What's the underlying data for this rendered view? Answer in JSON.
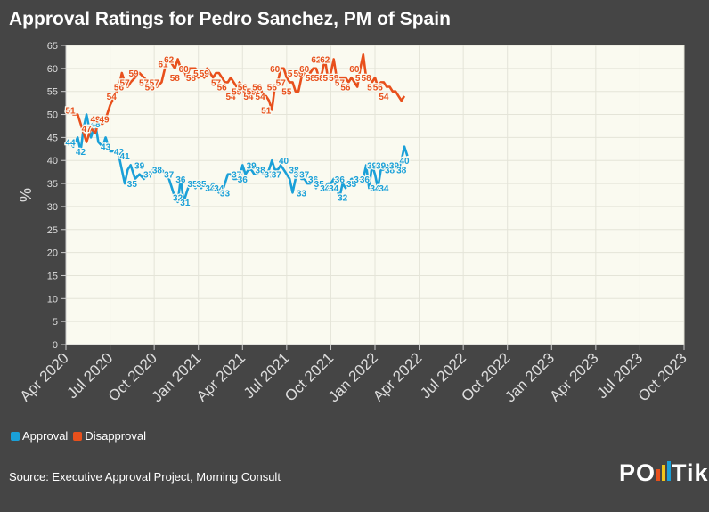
{
  "title": "Approval Ratings for Pedro Sanchez, PM of Spain",
  "legend": {
    "approval": "Approval",
    "disapproval": "Disapproval"
  },
  "source": "Source: Executive Approval Project, Morning Consult",
  "logo": {
    "prefix": "PO",
    "suffix": "Tik"
  },
  "colors": {
    "approval": "#1aa0d8",
    "disapproval": "#e8501c",
    "plot_bg": "#fafaf0",
    "page_bg": "#454545"
  },
  "chart_data": {
    "type": "line",
    "title": "Approval Ratings for Pedro Sanchez, PM of Spain",
    "ylabel": "%",
    "xlabel": "",
    "ylim": [
      0,
      65
    ],
    "yticks": [
      0,
      5,
      10,
      15,
      20,
      25,
      30,
      35,
      40,
      45,
      50,
      55,
      60,
      65
    ],
    "x_start": "Apr 2020",
    "x_end": "Oct 2023",
    "xticks": [
      "Apr 2020",
      "Jul 2020",
      "Oct 2020",
      "Jan 2021",
      "Apr 2021",
      "Jul 2021",
      "Oct 2021",
      "Jan 2022",
      "Apr 2022",
      "Jul 2022",
      "Oct 2022",
      "Jan 2023",
      "Apr 2023",
      "Jul 2023",
      "Oct 2023"
    ],
    "series": [
      {
        "name": "Approval",
        "points": [
          [
            0.3,
            44
          ],
          [
            0.5,
            43
          ],
          [
            0.8,
            45
          ],
          [
            1.0,
            42
          ],
          [
            1.2,
            47
          ],
          [
            1.4,
            50
          ],
          [
            1.7,
            45
          ],
          [
            2.0,
            48
          ],
          [
            2.2,
            44
          ],
          [
            2.5,
            43
          ],
          [
            2.7,
            45
          ],
          [
            3.0,
            42
          ],
          [
            3.3,
            42
          ],
          [
            3.6,
            41
          ],
          [
            3.8,
            38
          ],
          [
            4.0,
            35
          ],
          [
            4.2,
            38
          ],
          [
            4.4,
            39
          ],
          [
            4.7,
            36
          ],
          [
            5.0,
            37
          ],
          [
            5.3,
            36
          ],
          [
            5.6,
            37
          ],
          [
            5.9,
            38
          ],
          [
            6.2,
            38
          ],
          [
            6.5,
            38
          ],
          [
            6.8,
            37
          ],
          [
            7.0,
            36
          ],
          [
            7.2,
            34
          ],
          [
            7.4,
            32
          ],
          [
            7.6,
            31
          ],
          [
            7.8,
            36
          ],
          [
            8.0,
            31
          ],
          [
            8.2,
            33
          ],
          [
            8.4,
            35
          ],
          [
            8.6,
            35
          ],
          [
            8.8,
            34
          ],
          [
            9.0,
            35
          ],
          [
            9.2,
            34
          ],
          [
            9.4,
            35
          ],
          [
            9.6,
            34
          ],
          [
            9.8,
            34
          ],
          [
            10.0,
            35
          ],
          [
            10.2,
            34
          ],
          [
            10.4,
            33
          ],
          [
            10.6,
            33
          ],
          [
            10.8,
            35
          ],
          [
            11.0,
            37
          ],
          [
            11.2,
            37
          ],
          [
            11.4,
            36
          ],
          [
            11.6,
            36
          ],
          [
            11.8,
            36
          ],
          [
            12.0,
            39
          ],
          [
            12.2,
            37
          ],
          [
            12.4,
            38
          ],
          [
            12.6,
            38
          ],
          [
            12.8,
            37
          ],
          [
            13.0,
            37
          ],
          [
            13.2,
            38
          ],
          [
            13.4,
            37
          ],
          [
            13.6,
            37
          ],
          [
            13.8,
            38
          ],
          [
            14.0,
            40
          ],
          [
            14.2,
            38
          ],
          [
            14.4,
            38
          ],
          [
            14.6,
            39
          ],
          [
            14.8,
            38
          ],
          [
            15.0,
            37
          ],
          [
            15.2,
            36
          ],
          [
            15.4,
            33
          ],
          [
            15.6,
            36
          ],
          [
            15.8,
            37
          ],
          [
            16.0,
            36
          ],
          [
            16.2,
            36
          ],
          [
            16.4,
            35
          ],
          [
            16.6,
            35
          ],
          [
            16.8,
            36
          ],
          [
            17.0,
            34
          ],
          [
            17.2,
            35
          ],
          [
            17.4,
            34
          ],
          [
            17.6,
            34
          ],
          [
            17.8,
            35
          ],
          [
            18.0,
            35
          ],
          [
            18.2,
            36
          ],
          [
            18.4,
            34
          ],
          [
            18.6,
            32
          ],
          [
            18.8,
            35
          ],
          [
            19.0,
            34
          ],
          [
            19.2,
            35
          ],
          [
            19.4,
            36
          ],
          [
            19.6,
            36
          ],
          [
            19.8,
            36
          ],
          [
            20.0,
            36
          ],
          [
            20.2,
            36
          ],
          [
            20.4,
            39
          ],
          [
            20.6,
            34
          ],
          [
            20.8,
            39
          ],
          [
            21.0,
            37
          ],
          [
            21.2,
            34
          ],
          [
            21.4,
            38
          ],
          [
            21.6,
            38
          ],
          [
            21.8,
            39
          ],
          [
            22.0,
            39
          ],
          [
            22.2,
            38
          ],
          [
            22.4,
            39
          ],
          [
            22.6,
            38
          ],
          [
            22.8,
            40
          ],
          [
            23.0,
            43
          ],
          [
            23.2,
            41
          ]
        ],
        "labels": [
          [
            0.3,
            44
          ],
          [
            1.0,
            42
          ],
          [
            1.4,
            47
          ],
          [
            2.0,
            48
          ],
          [
            2.7,
            43
          ],
          [
            3.6,
            42
          ],
          [
            4.0,
            41
          ],
          [
            4.5,
            35
          ],
          [
            5.0,
            39
          ],
          [
            5.6,
            37
          ],
          [
            6.2,
            38
          ],
          [
            7.0,
            37
          ],
          [
            7.6,
            32
          ],
          [
            7.8,
            36
          ],
          [
            8.1,
            31
          ],
          [
            8.6,
            35
          ],
          [
            9.2,
            35
          ],
          [
            9.8,
            34
          ],
          [
            10.4,
            34
          ],
          [
            10.8,
            33
          ],
          [
            11.6,
            37
          ],
          [
            12.0,
            36
          ],
          [
            12.6,
            39
          ],
          [
            13.2,
            38
          ],
          [
            13.8,
            37
          ],
          [
            14.3,
            37
          ],
          [
            14.8,
            40
          ],
          [
            15.5,
            38
          ],
          [
            15.8,
            37
          ],
          [
            16.0,
            33
          ],
          [
            16.2,
            37
          ],
          [
            16.8,
            36
          ],
          [
            17.2,
            35
          ],
          [
            17.6,
            34
          ],
          [
            18.2,
            34
          ],
          [
            18.6,
            36
          ],
          [
            18.8,
            32
          ],
          [
            19.4,
            35
          ],
          [
            19.9,
            36
          ],
          [
            20.3,
            36
          ],
          [
            20.8,
            39
          ],
          [
            21.0,
            34
          ],
          [
            21.4,
            39
          ],
          [
            21.6,
            34
          ],
          [
            22.0,
            38
          ],
          [
            22.3,
            39
          ],
          [
            22.8,
            38
          ],
          [
            23.0,
            40
          ]
        ]
      },
      {
        "name": "Disapproval",
        "points": [
          [
            0.3,
            51
          ],
          [
            0.5,
            50
          ],
          [
            0.8,
            50
          ],
          [
            1.0,
            48
          ],
          [
            1.2,
            46
          ],
          [
            1.4,
            44
          ],
          [
            1.7,
            47
          ],
          [
            2.0,
            46
          ],
          [
            2.2,
            48
          ],
          [
            2.5,
            48
          ],
          [
            2.7,
            49
          ],
          [
            3.0,
            52
          ],
          [
            3.3,
            54
          ],
          [
            3.6,
            56
          ],
          [
            3.8,
            59
          ],
          [
            4.0,
            57
          ],
          [
            4.2,
            56
          ],
          [
            4.4,
            57
          ],
          [
            4.7,
            58
          ],
          [
            5.0,
            59
          ],
          [
            5.3,
            58
          ],
          [
            5.6,
            57
          ],
          [
            5.9,
            57
          ],
          [
            6.2,
            56
          ],
          [
            6.5,
            57
          ],
          [
            6.8,
            61
          ],
          [
            7.0,
            62
          ],
          [
            7.2,
            61
          ],
          [
            7.4,
            60
          ],
          [
            7.6,
            62
          ],
          [
            7.8,
            60
          ],
          [
            8.0,
            60
          ],
          [
            8.2,
            58
          ],
          [
            8.4,
            60
          ],
          [
            8.6,
            60
          ],
          [
            8.8,
            60
          ],
          [
            9.0,
            58
          ],
          [
            9.2,
            59
          ],
          [
            9.4,
            58
          ],
          [
            9.6,
            60
          ],
          [
            9.8,
            59
          ],
          [
            10.0,
            58
          ],
          [
            10.2,
            59
          ],
          [
            10.4,
            59
          ],
          [
            10.6,
            58
          ],
          [
            10.8,
            57
          ],
          [
            11.0,
            57
          ],
          [
            11.2,
            58
          ],
          [
            11.4,
            57
          ],
          [
            11.6,
            56
          ],
          [
            11.8,
            57
          ],
          [
            12.0,
            56
          ],
          [
            12.2,
            54
          ],
          [
            12.4,
            55
          ],
          [
            12.6,
            55
          ],
          [
            12.8,
            56
          ],
          [
            13.0,
            55
          ],
          [
            13.2,
            56
          ],
          [
            13.4,
            54
          ],
          [
            13.6,
            54
          ],
          [
            13.8,
            53
          ],
          [
            14.0,
            51
          ],
          [
            14.2,
            56
          ],
          [
            14.4,
            57
          ],
          [
            14.6,
            60
          ],
          [
            14.8,
            60
          ],
          [
            15.0,
            58
          ],
          [
            15.2,
            57
          ],
          [
            15.4,
            57
          ],
          [
            15.6,
            55
          ],
          [
            15.8,
            55
          ],
          [
            16.0,
            58
          ],
          [
            16.2,
            59
          ],
          [
            16.4,
            60
          ],
          [
            16.6,
            59
          ],
          [
            16.8,
            60
          ],
          [
            17.0,
            60
          ],
          [
            17.2,
            58
          ],
          [
            17.4,
            59
          ],
          [
            17.6,
            62
          ],
          [
            17.8,
            58
          ],
          [
            18.0,
            59
          ],
          [
            18.2,
            62
          ],
          [
            18.4,
            58
          ],
          [
            18.6,
            58
          ],
          [
            18.8,
            58
          ],
          [
            19.0,
            58
          ],
          [
            19.2,
            57
          ],
          [
            19.4,
            58
          ],
          [
            19.6,
            57
          ],
          [
            19.8,
            56
          ],
          [
            20.0,
            60
          ],
          [
            20.2,
            63
          ],
          [
            20.4,
            58
          ],
          [
            20.6,
            58
          ],
          [
            20.8,
            57
          ],
          [
            21.0,
            58
          ],
          [
            21.2,
            56
          ],
          [
            21.4,
            57
          ],
          [
            21.6,
            57
          ],
          [
            21.8,
            56
          ],
          [
            22.0,
            56
          ],
          [
            22.2,
            55
          ],
          [
            22.4,
            55
          ],
          [
            22.6,
            54
          ],
          [
            22.8,
            53
          ],
          [
            23.0,
            54
          ]
        ],
        "labels": [
          [
            0.3,
            51
          ],
          [
            1.4,
            47
          ],
          [
            2.0,
            49
          ],
          [
            2.6,
            49
          ],
          [
            3.1,
            54
          ],
          [
            3.6,
            56
          ],
          [
            4.0,
            57
          ],
          [
            4.6,
            59
          ],
          [
            5.3,
            57
          ],
          [
            5.7,
            56
          ],
          [
            6.0,
            57
          ],
          [
            6.6,
            61
          ],
          [
            7.0,
            62
          ],
          [
            7.4,
            58
          ],
          [
            8.0,
            60
          ],
          [
            8.5,
            58
          ],
          [
            9.0,
            59
          ],
          [
            9.4,
            59
          ],
          [
            10.2,
            57
          ],
          [
            10.6,
            56
          ],
          [
            11.2,
            54
          ],
          [
            11.6,
            55
          ],
          [
            12.0,
            56
          ],
          [
            12.4,
            54
          ],
          [
            12.6,
            55
          ],
          [
            13.0,
            56
          ],
          [
            13.2,
            54
          ],
          [
            13.6,
            51
          ],
          [
            14.0,
            56
          ],
          [
            14.2,
            60
          ],
          [
            14.6,
            57
          ],
          [
            15.0,
            55
          ],
          [
            15.4,
            59
          ],
          [
            15.8,
            59
          ],
          [
            16.2,
            60
          ],
          [
            16.6,
            58
          ],
          [
            17.0,
            62
          ],
          [
            17.2,
            58
          ],
          [
            17.6,
            62
          ],
          [
            17.8,
            58
          ],
          [
            18.2,
            58
          ],
          [
            18.6,
            57
          ],
          [
            19.0,
            56
          ],
          [
            19.6,
            60
          ],
          [
            20.0,
            58
          ],
          [
            20.4,
            58
          ],
          [
            20.8,
            56
          ],
          [
            21.2,
            56
          ],
          [
            21.6,
            54
          ]
        ]
      }
    ]
  }
}
